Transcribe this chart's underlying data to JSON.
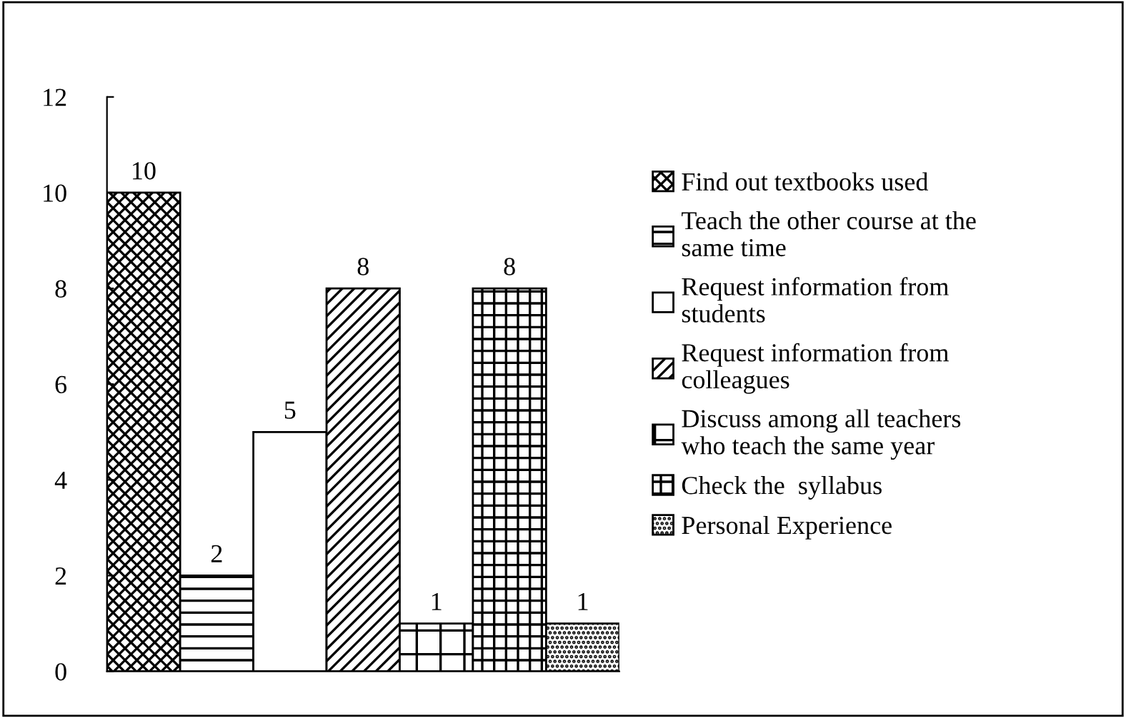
{
  "chart_data": {
    "type": "bar",
    "categories": [
      null,
      null,
      null,
      null,
      null,
      null,
      null
    ],
    "series": [
      {
        "name": "Find out textbooks used",
        "color": "#000000",
        "values": [
          10,
          null,
          null,
          null,
          null,
          null,
          null
        ]
      },
      {
        "name": "Teach the other course at the\nsame time",
        "color": "#000000",
        "values": [
          null,
          2,
          null,
          null,
          null,
          null,
          null
        ]
      },
      {
        "name": "Request information from\nstudents",
        "color": "#000000",
        "values": [
          null,
          null,
          5,
          null,
          null,
          null,
          null
        ]
      },
      {
        "name": "Request information from\ncolleagues",
        "color": "#000000",
        "values": [
          null,
          null,
          null,
          8,
          null,
          null,
          null
        ]
      },
      {
        "name": "Discuss among all teachers\nwho teach the same year",
        "color": "#000000",
        "values": [
          null,
          null,
          null,
          null,
          1,
          null,
          null
        ]
      },
      {
        "name": "Check the  syllabus",
        "color": "#000000",
        "values": [
          null,
          null,
          null,
          null,
          null,
          8,
          null
        ]
      },
      {
        "name": "Personal Experience",
        "color": "#000000",
        "values": [
          null,
          null,
          null,
          null,
          null,
          null,
          1
        ]
      }
    ],
    "ylim": [
      0,
      12
    ],
    "yticks": [
      0,
      2,
      4,
      6,
      8,
      10,
      12
    ],
    "data_labels": true,
    "grid": false,
    "legend": "right"
  }
}
